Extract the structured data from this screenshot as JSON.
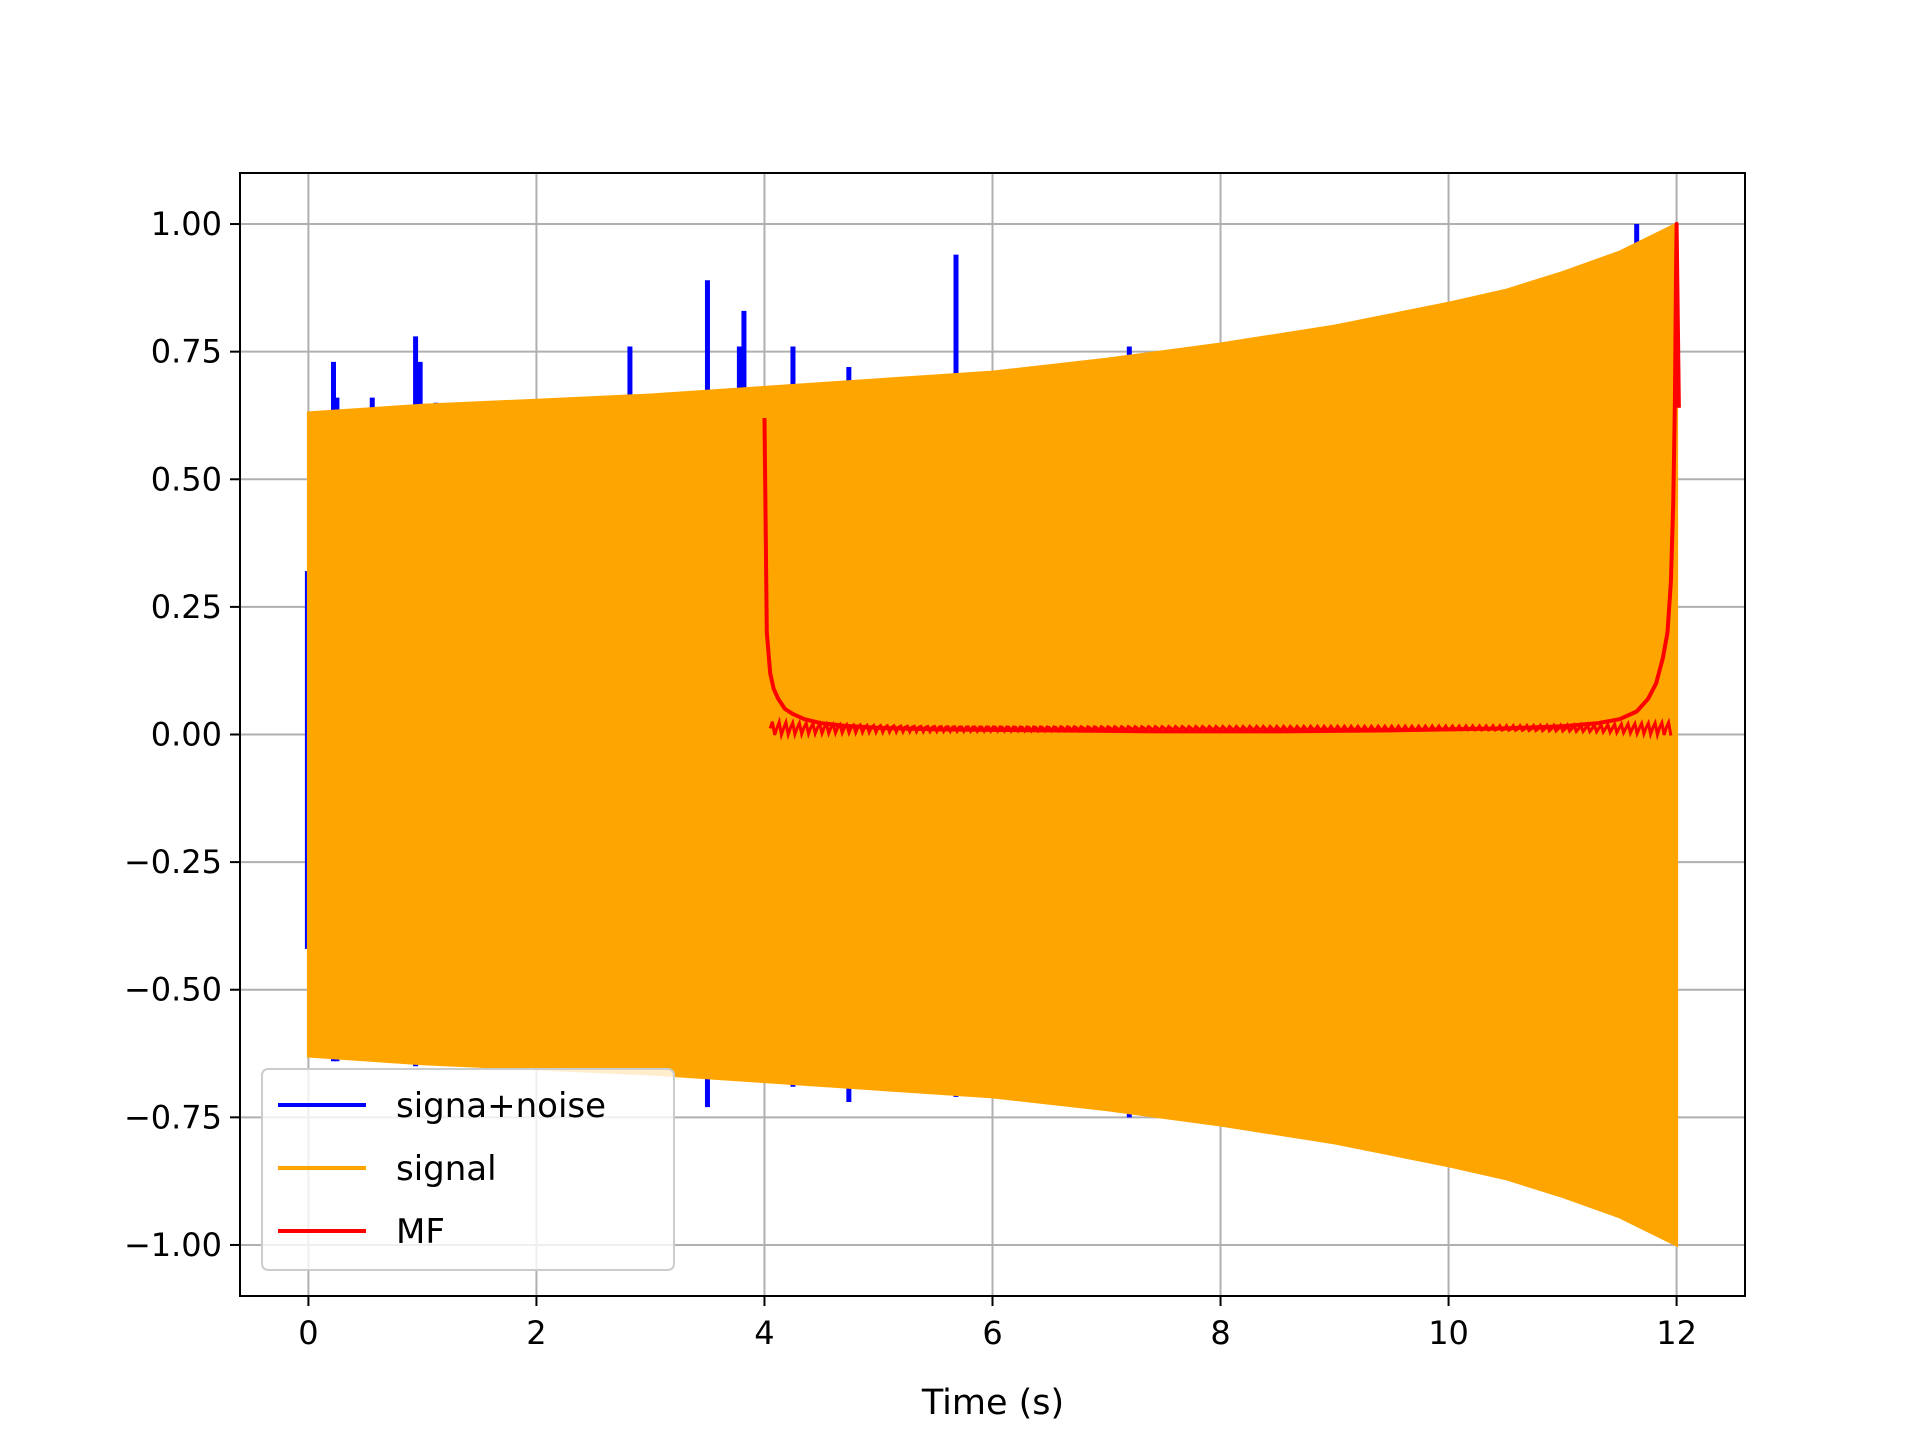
{
  "chart_data": {
    "type": "line",
    "title": "",
    "xlabel": "Time (s)",
    "ylabel": "",
    "xlim": [
      -0.6,
      12.6
    ],
    "ylim": [
      -1.1,
      1.1
    ],
    "x_ticks": [
      0,
      2,
      4,
      6,
      8,
      10,
      12
    ],
    "x_tick_labels": [
      "0",
      "2",
      "4",
      "6",
      "8",
      "10",
      "12"
    ],
    "y_ticks": [
      1.0,
      0.75,
      0.5,
      0.25,
      0.0,
      -0.25,
      -0.5,
      -0.75,
      -1.0
    ],
    "y_tick_labels": [
      "1.00",
      "0.75",
      "0.50",
      "0.25",
      "0.00",
      "−0.25",
      "−0.50",
      "−0.75",
      "−1.00"
    ],
    "grid": true,
    "legend_position": "lower-left",
    "series": [
      {
        "name": "signa+noise",
        "color": "#0000ff",
        "envelope_x": [
          0,
          12
        ],
        "spikes": [
          {
            "x": 0.22,
            "y_top": 0.73,
            "y_bottom": -0.64
          },
          {
            "x": 0.25,
            "y_top": 0.66,
            "y_bottom": -0.64
          },
          {
            "x": 0.56,
            "y_top": 0.66,
            "y_bottom": -0.64
          },
          {
            "x": 0.94,
            "y_top": 0.78,
            "y_bottom": -0.65
          },
          {
            "x": 0.98,
            "y_top": 0.73,
            "y_bottom": -0.64
          },
          {
            "x": 1.12,
            "y_top": 0.65,
            "y_bottom": -0.64
          },
          {
            "x": 2.82,
            "y_top": 0.76,
            "y_bottom": -0.66
          },
          {
            "x": 3.5,
            "y_top": 0.89,
            "y_bottom": -0.73
          },
          {
            "x": 3.78,
            "y_top": 0.76,
            "y_bottom": -0.67
          },
          {
            "x": 3.82,
            "y_top": 0.83,
            "y_bottom": -0.67
          },
          {
            "x": 4.25,
            "y_top": 0.76,
            "y_bottom": -0.69
          },
          {
            "x": 4.74,
            "y_top": 0.72,
            "y_bottom": -0.72
          },
          {
            "x": 5.68,
            "y_top": 0.94,
            "y_bottom": -0.71
          },
          {
            "x": 7.2,
            "y_top": 0.76,
            "y_bottom": -0.75
          },
          {
            "x": 11.65,
            "y_top": 1.0,
            "y_bottom": -0.95
          }
        ]
      },
      {
        "name": "signal",
        "color": "#ffa500",
        "envelope": {
          "x": [
            0,
            1,
            2,
            3,
            4,
            5,
            6,
            7,
            8,
            9,
            10,
            10.5,
            11,
            11.5,
            12
          ],
          "upper": [
            0.63,
            0.645,
            0.655,
            0.665,
            0.68,
            0.695,
            0.71,
            0.735,
            0.765,
            0.8,
            0.845,
            0.87,
            0.905,
            0.945,
            1.0
          ],
          "lower": [
            -0.63,
            -0.645,
            -0.655,
            -0.665,
            -0.68,
            -0.695,
            -0.71,
            -0.735,
            -0.765,
            -0.8,
            -0.845,
            -0.87,
            -0.905,
            -0.945,
            -1.0
          ]
        }
      },
      {
        "name": "MF",
        "color": "#ff0000",
        "x": [
          4.0,
          4.02,
          4.05,
          4.08,
          4.12,
          4.18,
          4.25,
          4.35,
          4.5,
          4.7,
          5.0,
          5.5,
          6.0,
          6.5,
          7.0,
          7.5,
          8.0,
          8.5,
          9.0,
          9.5,
          10.0,
          10.5,
          11.0,
          11.3,
          11.5,
          11.65,
          11.75,
          11.82,
          11.88,
          11.92,
          11.95,
          11.97,
          11.985,
          11.995,
          12.0,
          12.02
        ],
        "y": [
          0.62,
          0.2,
          0.12,
          0.09,
          0.07,
          0.05,
          0.04,
          0.03,
          0.022,
          0.017,
          0.013,
          0.01,
          0.009,
          0.008,
          0.007,
          0.006,
          0.006,
          0.006,
          0.007,
          0.008,
          0.01,
          0.012,
          0.016,
          0.022,
          0.03,
          0.045,
          0.07,
          0.1,
          0.15,
          0.2,
          0.3,
          0.45,
          0.65,
          0.9,
          1.0,
          0.64
        ]
      }
    ]
  }
}
